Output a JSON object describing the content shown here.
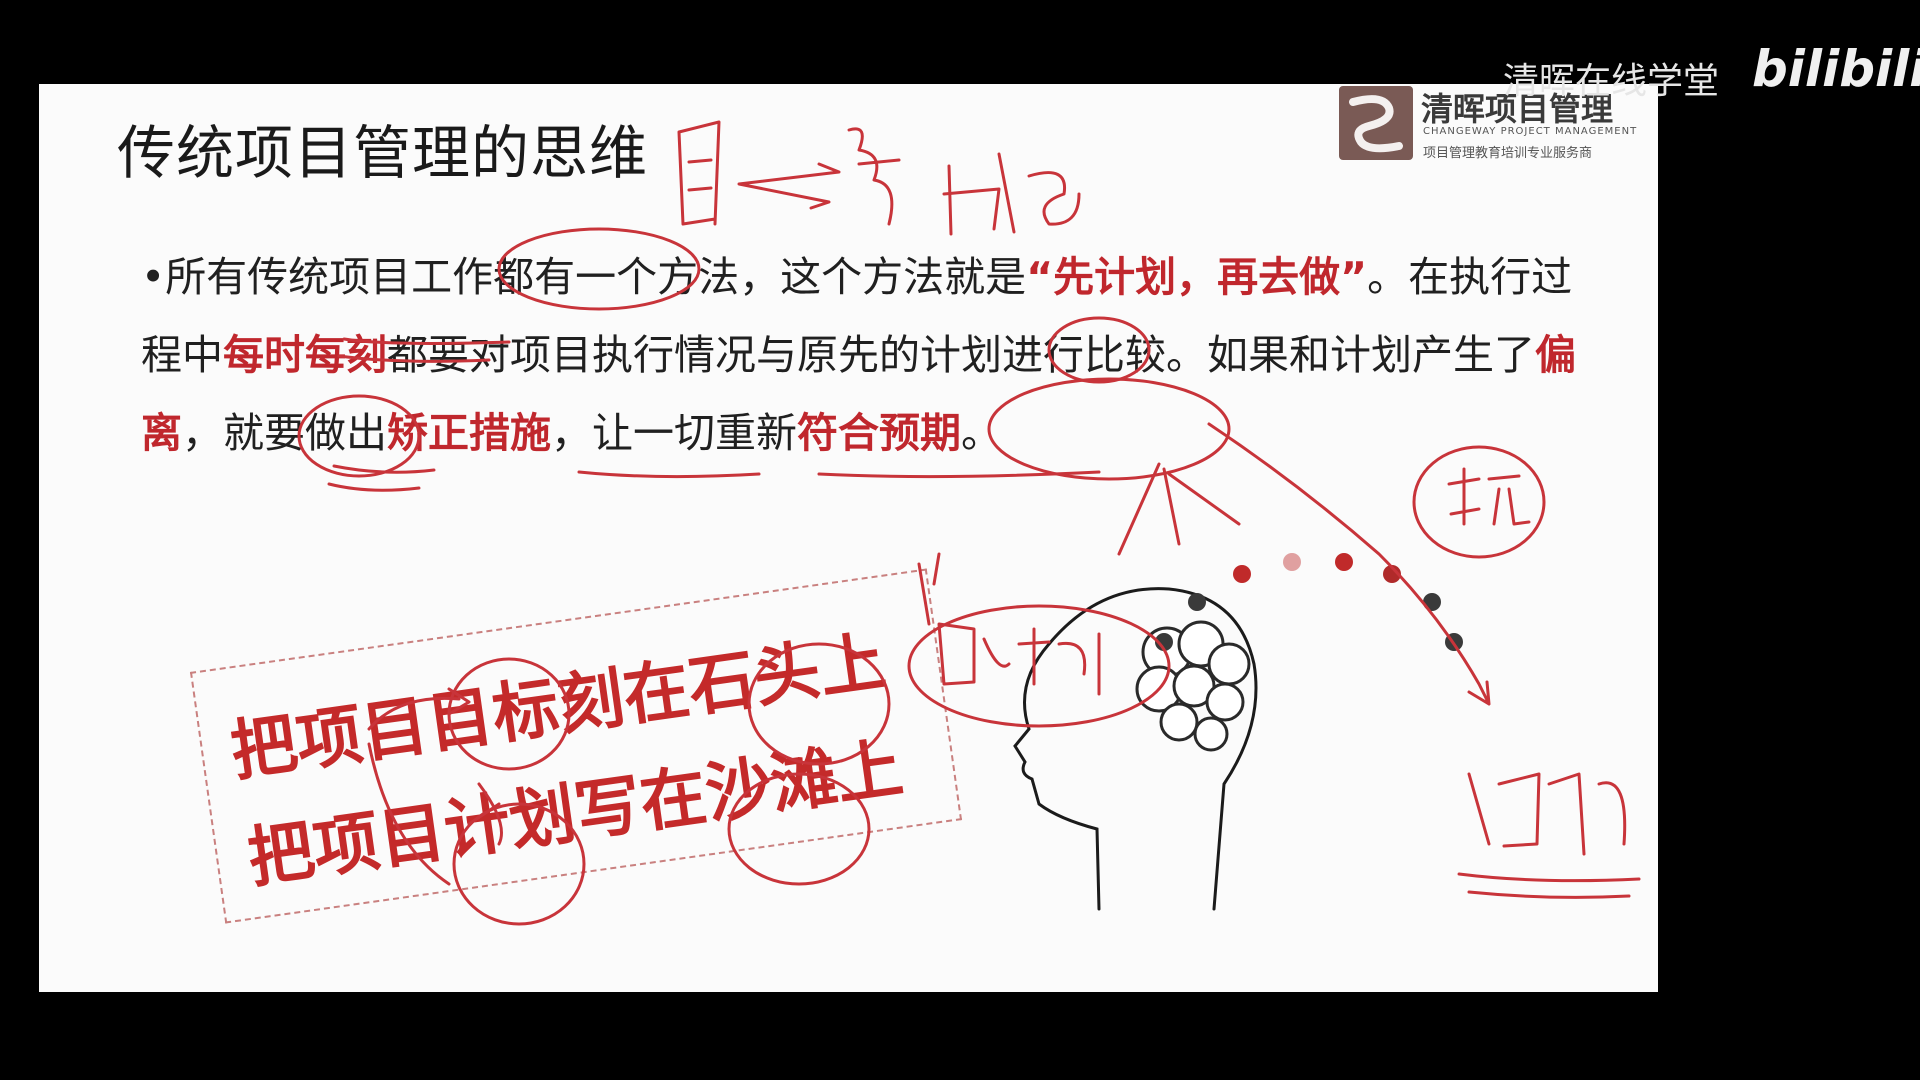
{
  "slide": {
    "title": "传统项目管理的思维",
    "logo": {
      "name": "清晖项目管理",
      "english": "CHANGEWAY PROJECT MANAGEMENT",
      "subtitle": "项目管理教育培训专业服务商",
      "icon": "swirl-logo-icon"
    },
    "paragraph": {
      "bullet": "•",
      "p1": "所有传统项目工作都有一个方法，这个方法就是",
      "q_open": "“",
      "h1": "先计划，再去做",
      "q_close": "”",
      "p2": "。在执行过程中",
      "h2": "每时每刻",
      "p3": "都要对项目执行情况与原先的计划进行比较。如果和计划产生了",
      "h3": "偏离",
      "p4": "，就要做出",
      "h4": "矫正措施",
      "p5": "，让一切重新",
      "h5": "符合预期",
      "p6": "。"
    },
    "stamp": {
      "line1": "把项目目标刻在石头上",
      "line2": "把项目计划写在沙滩上"
    },
    "illustration": "head-brain-icon"
  },
  "watermark": {
    "text": "清晖在线学堂",
    "brand": "bilibili"
  },
  "colors": {
    "highlight": "#c0272d",
    "annotation": "#c8343a",
    "background": "#000000",
    "slide": "#fbfbfb"
  }
}
